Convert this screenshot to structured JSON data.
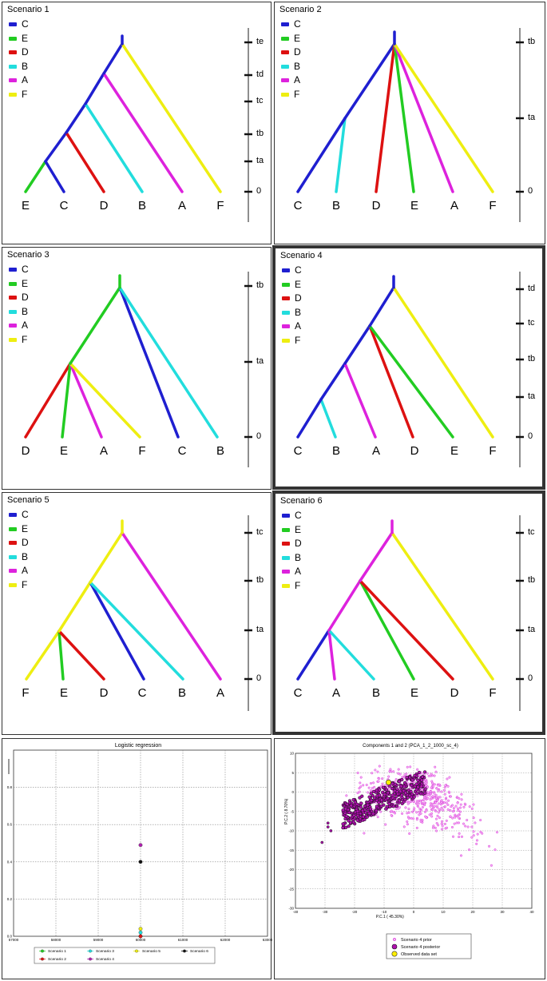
{
  "colors": {
    "C": "#1f1fd0",
    "E": "#22cc22",
    "D": "#dd1111",
    "B": "#22dddd",
    "A": "#dd22dd",
    "F": "#eeee11"
  },
  "scenarios": [
    {
      "title": "Scenario 1",
      "legend": [
        "C",
        "E",
        "D",
        "B",
        "A",
        "F"
      ],
      "leaves": [
        "E",
        "C",
        "D",
        "B",
        "A",
        "F"
      ],
      "times": [
        "te",
        "td",
        "tc",
        "tb",
        "ta",
        "0"
      ]
    },
    {
      "title": "Scenario 2",
      "legend": [
        "C",
        "E",
        "D",
        "B",
        "A",
        "F"
      ],
      "leaves": [
        "C",
        "B",
        "D",
        "E",
        "A",
        "F"
      ],
      "times": [
        "tb",
        "ta",
        "0"
      ]
    },
    {
      "title": "Scenario 3",
      "legend": [
        "C",
        "E",
        "D",
        "B",
        "A",
        "F"
      ],
      "leaves": [
        "D",
        "E",
        "A",
        "F",
        "C",
        "B"
      ],
      "times": [
        "tb",
        "ta",
        "0"
      ]
    },
    {
      "title": "Scenario 4",
      "legend": [
        "C",
        "E",
        "D",
        "B",
        "A",
        "F"
      ],
      "leaves": [
        "C",
        "B",
        "A",
        "D",
        "E",
        "F"
      ],
      "times": [
        "td",
        "tc",
        "tb",
        "ta",
        "0"
      ]
    },
    {
      "title": "Scenario 5",
      "legend": [
        "C",
        "E",
        "D",
        "B",
        "A",
        "F"
      ],
      "leaves": [
        "F",
        "E",
        "D",
        "C",
        "B",
        "A"
      ],
      "times": [
        "tc",
        "tb",
        "ta",
        "0"
      ]
    },
    {
      "title": "Scenario 6",
      "legend": [
        "C",
        "E",
        "D",
        "B",
        "A",
        "F"
      ],
      "leaves": [
        "C",
        "A",
        "B",
        "E",
        "D",
        "F"
      ],
      "times": [
        "tc",
        "tb",
        "ta",
        "0"
      ]
    }
  ],
  "logistic": {
    "title": "Logistic regression",
    "xticks": [
      "57000",
      "58000",
      "59000",
      "60000",
      "61000",
      "62000",
      "63000"
    ],
    "yticks": [
      "0.0",
      "0.2",
      "0.4",
      "0.6",
      "0.8"
    ],
    "legend": [
      {
        "label": "Scenario 1",
        "color": "#22cc22"
      },
      {
        "label": "Scenario 2",
        "color": "#dd1111"
      },
      {
        "label": "Scenario 3",
        "color": "#22dddd"
      },
      {
        "label": "Scenario 4",
        "color": "#b020b0"
      },
      {
        "label": "Scenario 5",
        "color": "#eeee11"
      },
      {
        "label": "Scenario 6",
        "color": "#111111"
      }
    ]
  },
  "chart_data": {
    "type": "scatter",
    "title": "Logistic regression",
    "xlim": [
      57000,
      63000
    ],
    "ylim": [
      0,
      1
    ],
    "series": [
      {
        "name": "Scenario 1",
        "x": [
          60000
        ],
        "y": [
          0.0
        ]
      },
      {
        "name": "Scenario 2",
        "x": [
          60000
        ],
        "y": [
          0.0
        ]
      },
      {
        "name": "Scenario 3",
        "x": [
          60000
        ],
        "y": [
          0.02
        ]
      },
      {
        "name": "Scenario 4",
        "x": [
          60000
        ],
        "y": [
          0.49
        ]
      },
      {
        "name": "Scenario 5",
        "x": [
          60000
        ],
        "y": [
          0.04
        ]
      },
      {
        "name": "Scenario 6",
        "x": [
          60000
        ],
        "y": [
          0.4
        ]
      }
    ]
  },
  "pca": {
    "title": "Components 1 and 2 (PCA_1_2_1000_sc_4)",
    "xlabel": "P.C.1 (  45.30%)",
    "ylabel": "P.C.2 (   8.70%)",
    "xticks": [
      "-40",
      "-30",
      "-20",
      "-10",
      "0",
      "10",
      "20",
      "30",
      "40"
    ],
    "yticks": [
      "10",
      "5",
      "0",
      "-5",
      "-10",
      "-15",
      "-20",
      "-25",
      "-30"
    ],
    "legend": [
      "Scenario 4 prior",
      "Scenario 4 posterior",
      "Observed data set"
    ]
  }
}
